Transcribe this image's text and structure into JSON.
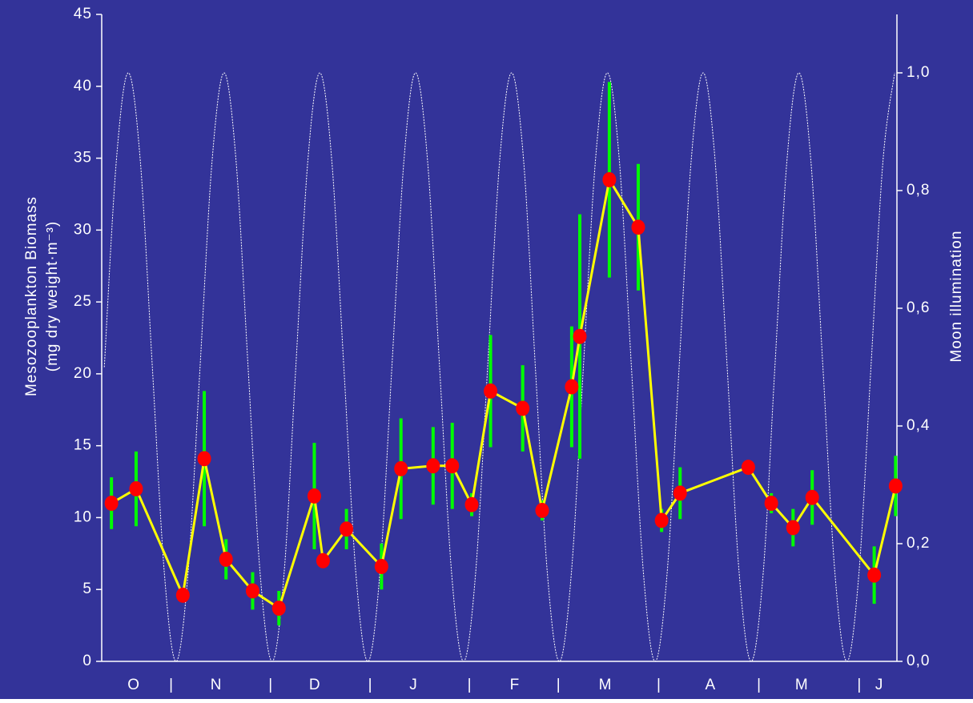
{
  "chart_data": {
    "type": "line",
    "y_label_lines": [
      "Mesozooplankton Biomass",
      "(mg dry weight·m⁻³)"
    ],
    "y2_label": "Moon illumination",
    "background": "#333399",
    "xlim": [
      0,
      245
    ],
    "xticks": [
      {
        "value": 9.9,
        "label": "O"
      },
      {
        "value": 21.5,
        "label": "|"
      },
      {
        "value": 35.3,
        "label": "N"
      },
      {
        "value": 52.1,
        "label": "|"
      },
      {
        "value": 65.7,
        "label": "D"
      },
      {
        "value": 82.8,
        "label": "|"
      },
      {
        "value": 96.1,
        "label": "J"
      },
      {
        "value": 113.4,
        "label": "|"
      },
      {
        "value": 127.3,
        "label": "F"
      },
      {
        "value": 140.8,
        "label": "|"
      },
      {
        "value": 155.2,
        "label": "M"
      },
      {
        "value": 171.7,
        "label": "|"
      },
      {
        "value": 187.6,
        "label": "A"
      },
      {
        "value": 202.6,
        "label": "|"
      },
      {
        "value": 215.7,
        "label": "M"
      },
      {
        "value": 233.5,
        "label": "|"
      },
      {
        "value": 239.6,
        "label": "J"
      }
    ],
    "ylim": [
      0,
      45
    ],
    "yticks": [
      0,
      5,
      10,
      15,
      20,
      25,
      30,
      35,
      40,
      45
    ],
    "y2lim": [
      0,
      1.0993
    ],
    "y2ticks": [
      {
        "value": 0,
        "label": "0,0"
      },
      {
        "value": 0.2,
        "label": "0,2"
      },
      {
        "value": 0.4,
        "label": "0,4"
      },
      {
        "value": 0.6,
        "label": "0,6"
      },
      {
        "value": 0.8,
        "label": "0,8"
      },
      {
        "value": 1.0,
        "label": "1,0"
      }
    ],
    "series": [
      {
        "name": "Moon illumination",
        "axis": "y2",
        "color": "#ffffff",
        "x": [
          0.8,
          4.5,
          8.2,
          11.9,
          15.6,
          19.3,
          22.9,
          26.6,
          30.3,
          34.0,
          37.7,
          41.4,
          45.1,
          48.8,
          52.5,
          56.2,
          59.8,
          63.5,
          67.2,
          70.9,
          74.6,
          78.3,
          82.0,
          85.7,
          89.4,
          93.1,
          96.7,
          100.4,
          104.1,
          107.8,
          111.5,
          115.2,
          118.9,
          122.6,
          126.3,
          130.0,
          133.6,
          137.3,
          141.0,
          144.7,
          148.4,
          152.1,
          155.8,
          159.5,
          163.2,
          166.9,
          170.5,
          174.2,
          177.9,
          181.6,
          185.3,
          189.0,
          192.7,
          196.4,
          200.1,
          203.8,
          207.4,
          211.1,
          214.8,
          218.5,
          222.2,
          225.9,
          229.6,
          233.3,
          237.0,
          240.7,
          244.3
        ],
        "values": [
          0.5,
          0.85,
          1,
          0.85,
          0.5,
          0.15,
          0,
          0.15,
          0.5,
          0.85,
          1,
          0.85,
          0.5,
          0.15,
          0,
          0.15,
          0.5,
          0.85,
          1,
          0.85,
          0.5,
          0.15,
          0,
          0.15,
          0.5,
          0.85,
          1,
          0.85,
          0.5,
          0.15,
          0,
          0.15,
          0.5,
          0.85,
          1,
          0.85,
          0.5,
          0.15,
          0,
          0.15,
          0.5,
          0.85,
          1,
          0.85,
          0.5,
          0.15,
          0,
          0.15,
          0.5,
          0.85,
          1,
          0.85,
          0.5,
          0.15,
          0,
          0.15,
          0.5,
          0.85,
          1,
          0.85,
          0.5,
          0.15,
          0,
          0.15,
          0.5,
          0.85,
          1
        ]
      },
      {
        "name": "Mesozooplankton Biomass",
        "color": "#ffff00",
        "marker_color": "#ff0000",
        "error_color": "#00ff00",
        "x": [
          3.0,
          10.6,
          25.0,
          31.6,
          38.3,
          46.5,
          54.6,
          65.5,
          68.2,
          75.4,
          86.2,
          92.2,
          102.1,
          108.0,
          114.0,
          119.8,
          129.7,
          135.7,
          144.8,
          147.3,
          156.4,
          165.3,
          172.5,
          178.2,
          199.2,
          206.3,
          213.0,
          218.9,
          238.0,
          244.6
        ],
        "values": [
          11.0,
          12.0,
          4.6,
          14.1,
          7.1,
          4.9,
          3.7,
          11.5,
          7.0,
          9.2,
          6.6,
          13.4,
          13.6,
          13.6,
          10.9,
          18.8,
          17.6,
          10.5,
          19.1,
          22.6,
          33.5,
          30.2,
          9.8,
          11.7,
          13.5,
          11.0,
          9.3,
          11.4,
          6.0,
          12.2
        ],
        "errors": [
          1.8,
          2.6,
          null,
          4.7,
          1.4,
          1.3,
          1.2,
          3.7,
          0.4,
          1.4,
          1.6,
          3.5,
          2.7,
          3.0,
          0.8,
          3.9,
          3.0,
          0.7,
          4.2,
          8.5,
          6.8,
          4.4,
          0.8,
          1.8,
          0.3,
          0.7,
          1.3,
          1.9,
          2.0,
          2.1
        ]
      }
    ]
  }
}
